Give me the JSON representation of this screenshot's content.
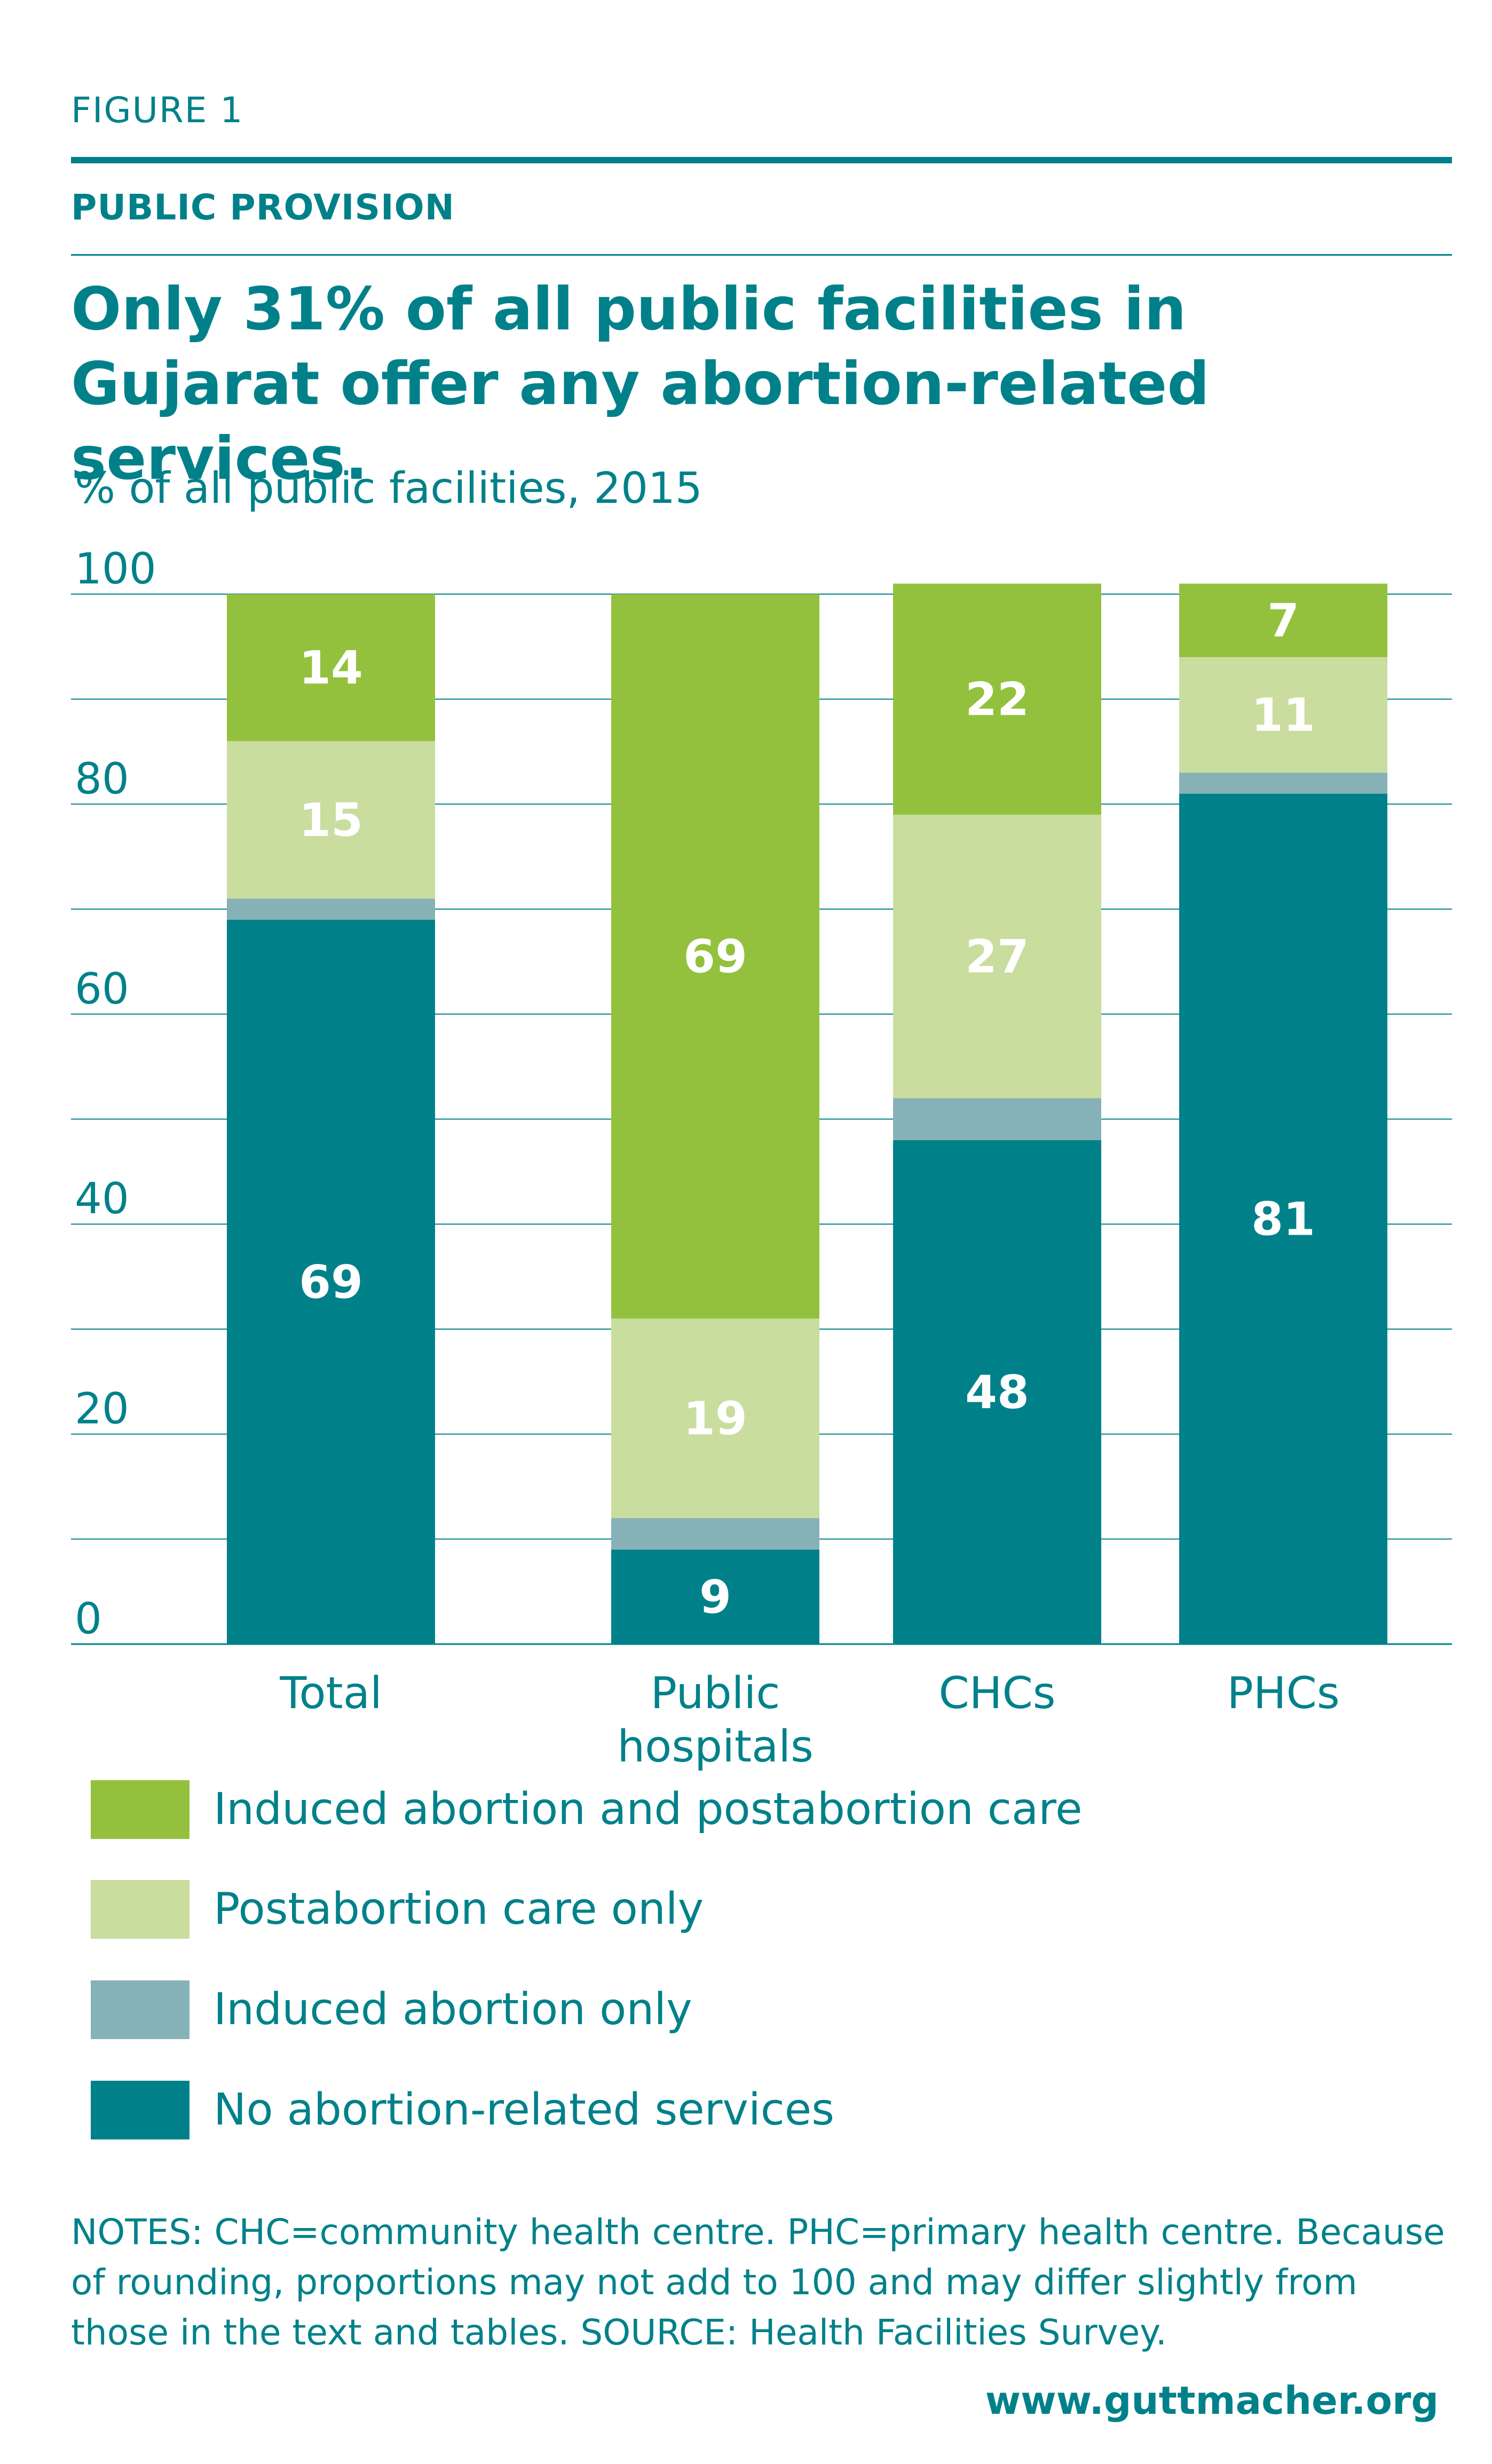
{
  "figure_label": "FIGURE 1",
  "section_label": "PUBLIC PROVISION",
  "notes": "NOTES: CHC=community health centre. PHC=primary health centre. Because of rounding, proportions may not add to 100 and may differ slightly from those in the text and tables. SOURCE: Health Facilities Survey.",
  "website": "www.guttmacher.org",
  "colors": {
    "induced_and_postabortion": "#93c13e",
    "postabortion_only": "#c9dd9e",
    "induced_only": "#86b2b7",
    "none": "#00818a",
    "text": "#00818a"
  },
  "chart_data": {
    "type": "bar",
    "stacked": true,
    "title": "Only 31% of all public facilities in Gujarat offer any abortion-related services.",
    "ylabel": "% of all public facilities, 2015",
    "xlabel": "",
    "ylim": [
      0,
      100
    ],
    "yticks": [
      0,
      20,
      40,
      60,
      80,
      100
    ],
    "gridlines": true,
    "legend_position": "bottom",
    "categories": [
      {
        "label": "Total",
        "lines": [
          "Total"
        ]
      },
      {
        "label": "Public hospitals",
        "lines": [
          "Public",
          "hospitals"
        ]
      },
      {
        "label": "CHCs",
        "lines": [
          "CHCs"
        ]
      },
      {
        "label": "PHCs",
        "lines": [
          "PHCs"
        ]
      }
    ],
    "series": [
      {
        "name": "No abortion-related services",
        "key": "none",
        "values": [
          69,
          9,
          48,
          81
        ],
        "show_labels": true
      },
      {
        "name": "Induced abortion only",
        "key": "induced_only",
        "values": [
          2,
          3,
          4,
          2
        ],
        "show_labels": false
      },
      {
        "name": "Postabortion care only",
        "key": "postabortion_only",
        "values": [
          15,
          19,
          27,
          11
        ],
        "show_labels": true
      },
      {
        "name": "Induced abortion and postabortion care",
        "key": "induced_and_postabortion",
        "values": [
          14,
          69,
          22,
          7
        ],
        "show_labels": true
      }
    ],
    "legend_order": [
      "induced_and_postabortion",
      "postabortion_only",
      "induced_only",
      "none"
    ]
  }
}
